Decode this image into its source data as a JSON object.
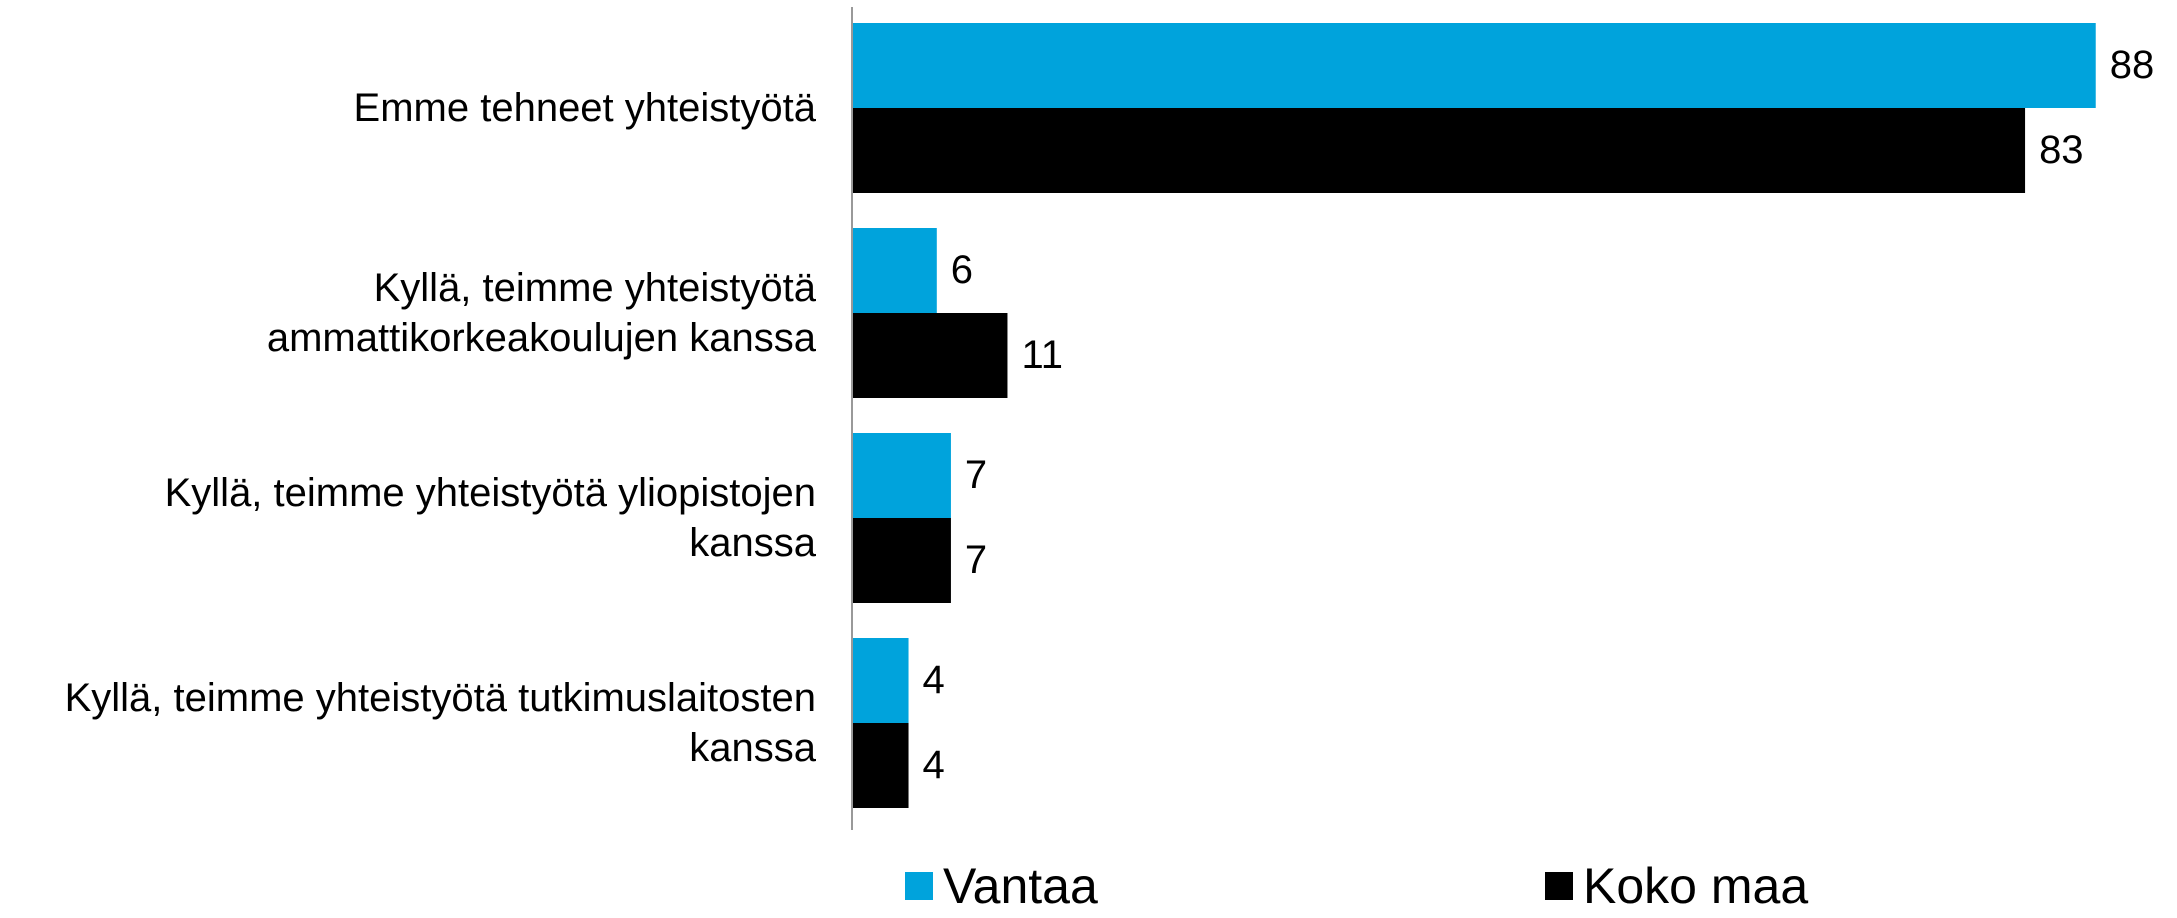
{
  "chart_data": {
    "type": "bar",
    "orientation": "horizontal",
    "categories": [
      "Emme tehneet yhteistyötä",
      "Kyllä, teimme yhteistyötä\nammattikorkeakoulujen kanssa",
      "Kyllä, teimme yhteistyötä yliopistojen\nkanssa",
      "Kyllä, teimme yhteistyötä tutkimuslaitosten\nkanssa"
    ],
    "series": [
      {
        "name": "Vantaa",
        "color": "#00a3dc",
        "values": [
          88,
          6,
          7,
          4
        ]
      },
      {
        "name": "Koko maa",
        "color": "#000000",
        "values": [
          83,
          11,
          7,
          4
        ]
      }
    ],
    "xlim": [
      0,
      90
    ],
    "legend": "bottom"
  }
}
